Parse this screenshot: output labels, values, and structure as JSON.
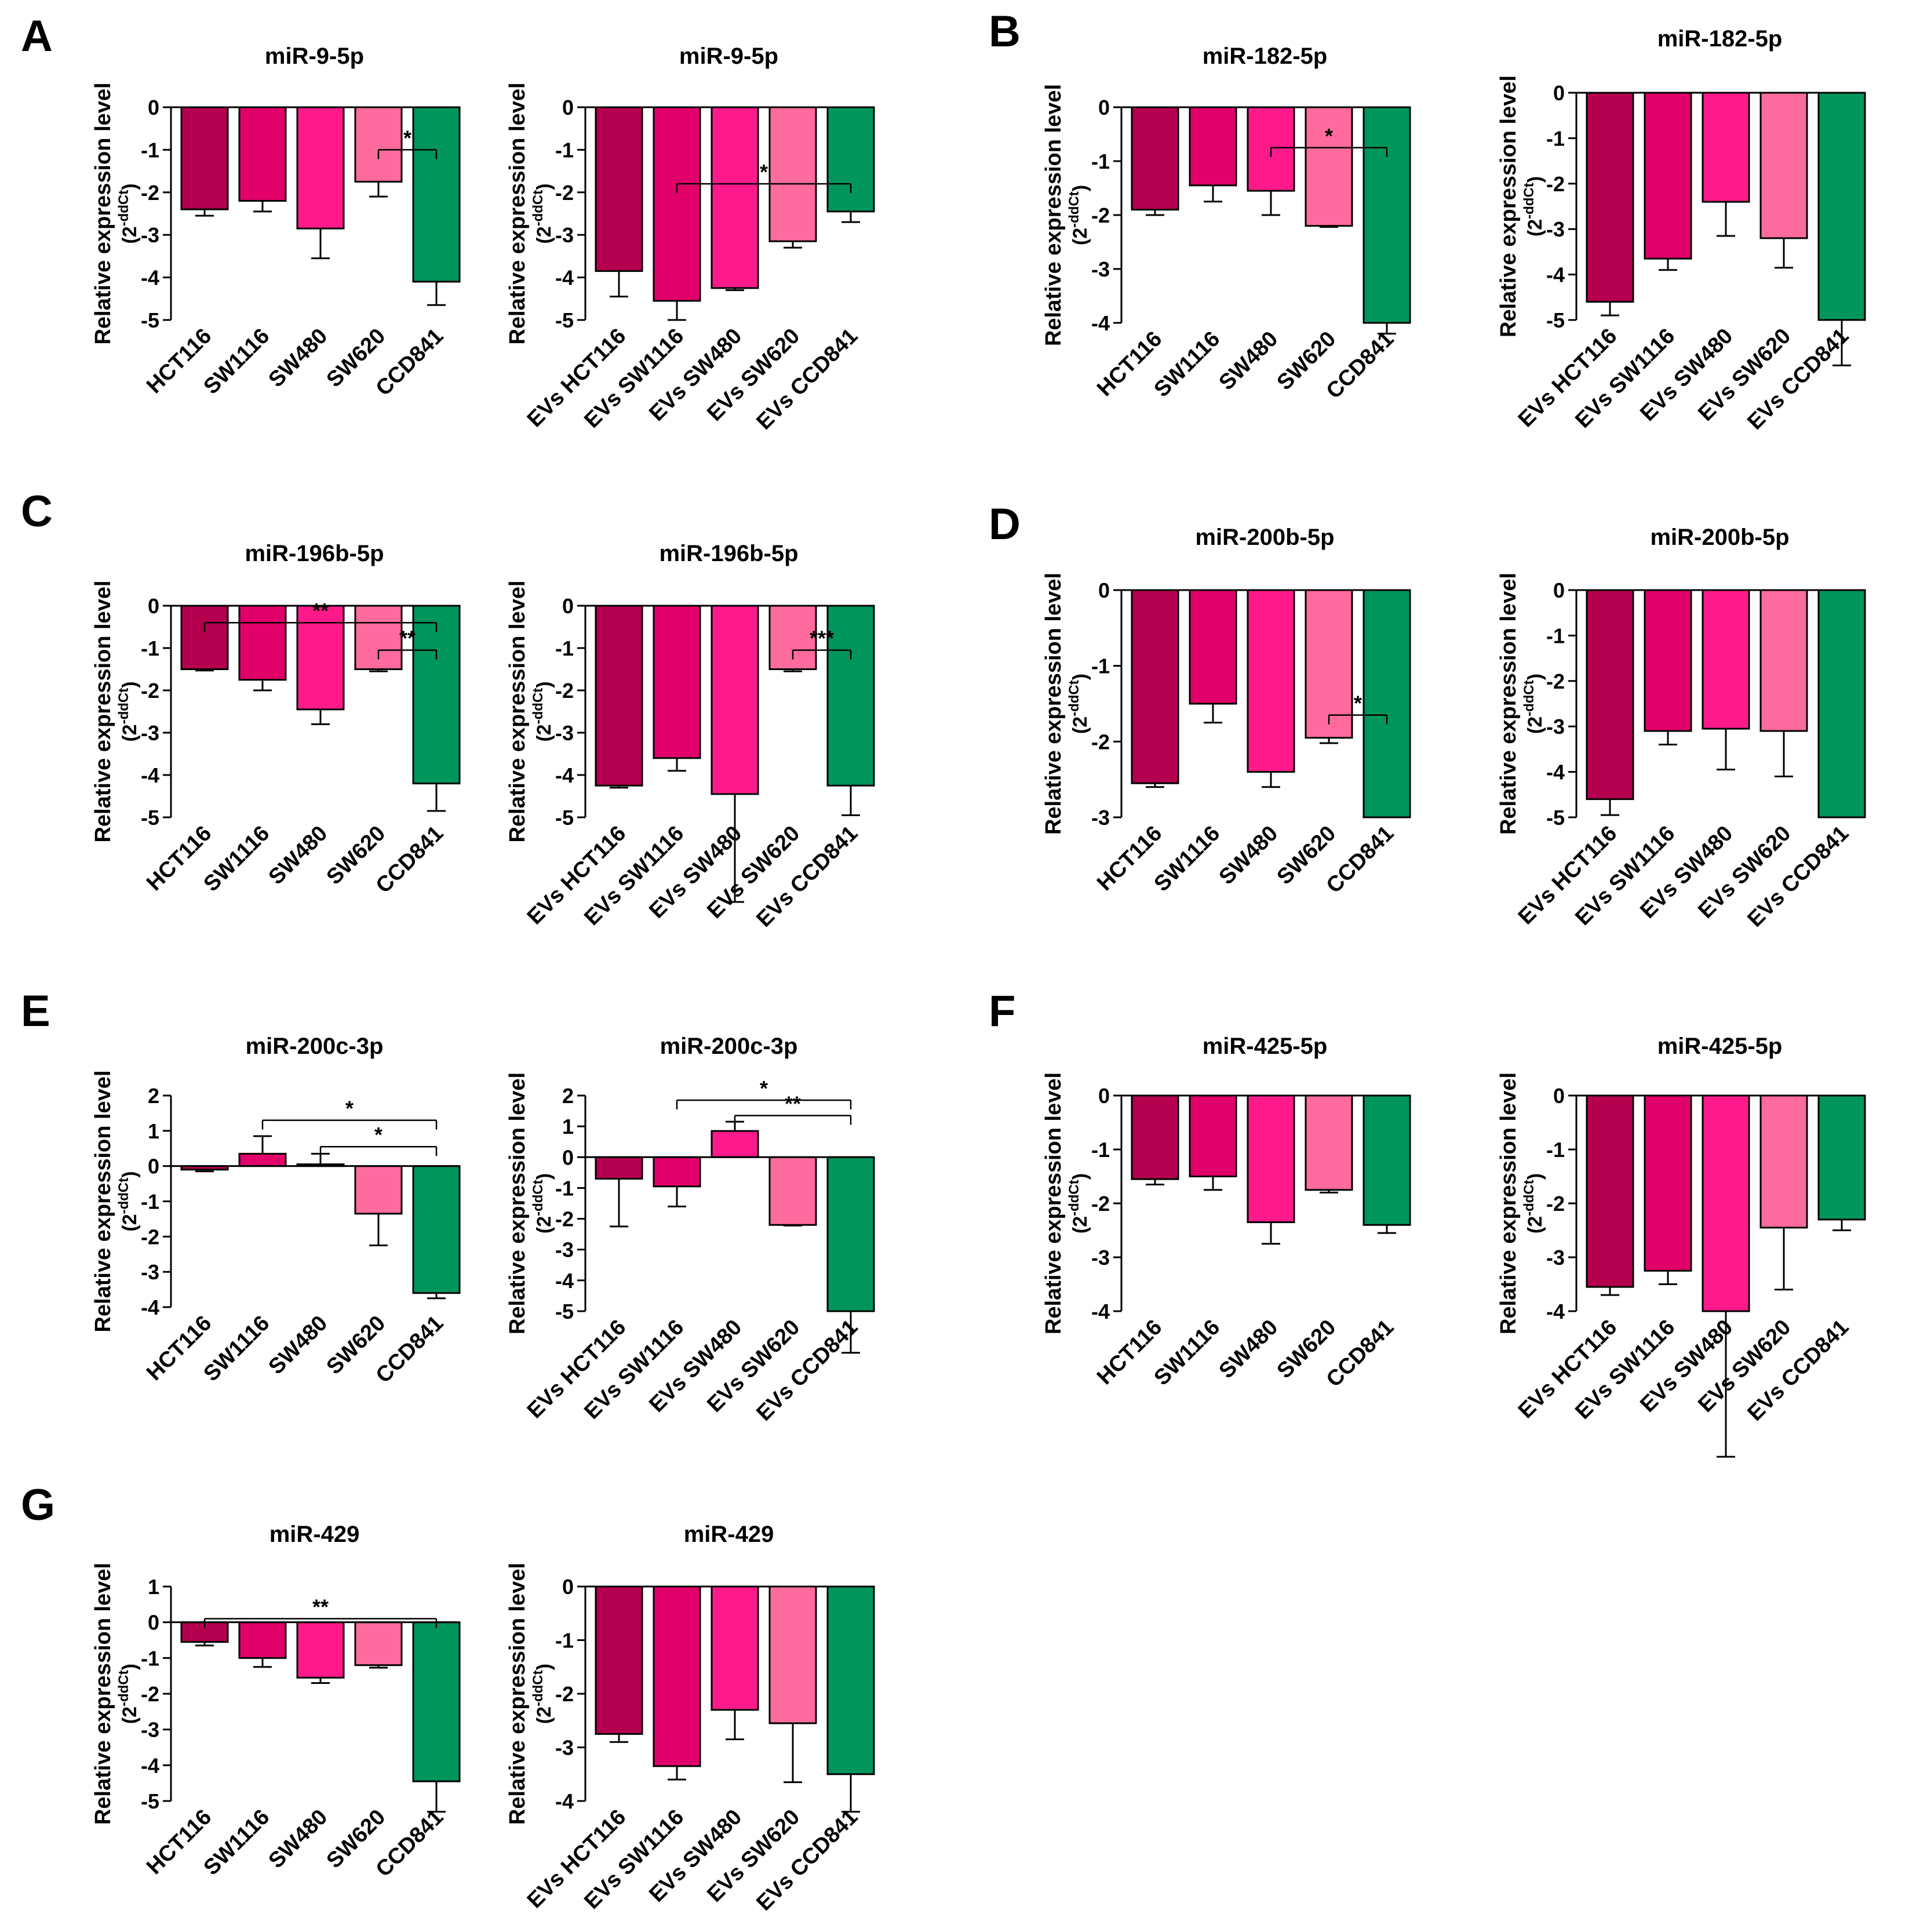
{
  "figure": {
    "panel_letters": [
      "A",
      "B",
      "C",
      "D",
      "E",
      "F",
      "G"
    ],
    "ylabel": "Relative expression level",
    "ylabel_unit": "(2",
    "ylabel_sup": "-ddCt",
    "ylabel_close": ")"
  },
  "colors": {
    "HCT116": "#b5004f",
    "SW1116": "#e2006a",
    "SW480": "#ff1a8c",
    "SW620": "#ff6b9e",
    "CCD841": "#00955a"
  },
  "chart_data": [
    {
      "panel": "A",
      "type": "bar",
      "title": "miR-9-5p",
      "categories": [
        "HCT116",
        "SW1116",
        "SW480",
        "SW620",
        "CCD841"
      ],
      "values": [
        -2.4,
        -2.2,
        -2.85,
        -1.75,
        -4.1
      ],
      "errors": [
        0.15,
        0.25,
        0.7,
        0.35,
        0.55
      ],
      "ylim": [
        -5,
        0
      ],
      "yticks": [
        0,
        -1,
        -2,
        -3,
        -4,
        -5
      ],
      "significance": [
        {
          "from": 3,
          "to": 4,
          "label": "*",
          "y": -1
        }
      ]
    },
    {
      "panel": "A",
      "type": "bar",
      "title": "miR-9-5p",
      "categories": [
        "EVs HCT116",
        "EVs SW1116",
        "EVs SW480",
        "EVs SW620",
        "EVs CCD841"
      ],
      "values": [
        -3.85,
        -4.55,
        -4.25,
        -3.15,
        -2.45
      ],
      "errors": [
        0.6,
        0.45,
        0.05,
        0.15,
        0.25
      ],
      "ylim": [
        -5,
        0
      ],
      "yticks": [
        0,
        -1,
        -2,
        -3,
        -4,
        -5
      ],
      "significance": [
        {
          "from": 1,
          "to": 4,
          "label": "*",
          "y": -1.8
        }
      ]
    },
    {
      "panel": "B",
      "type": "bar",
      "title": "miR-182-5p",
      "categories": [
        "HCT116",
        "SW1116",
        "SW480",
        "SW620",
        "CCD841"
      ],
      "values": [
        -1.9,
        -1.45,
        -1.55,
        -2.2,
        -4.0
      ],
      "errors": [
        0.1,
        0.3,
        0.45,
        0.02,
        0.2
      ],
      "ylim": [
        -4,
        0
      ],
      "yticks": [
        0,
        -1,
        -2,
        -3,
        -4
      ],
      "significance": [
        {
          "from": 2,
          "to": 4,
          "label": "*",
          "y": -0.75
        }
      ]
    },
    {
      "panel": "B",
      "type": "bar",
      "title": "miR-182-5p",
      "categories": [
        "EVs HCT116",
        "EVs SW1116",
        "EVs SW480",
        "EVs SW620",
        "EVs CCD841"
      ],
      "values": [
        -4.6,
        -3.65,
        -2.4,
        -3.2,
        -5.0
      ],
      "errors": [
        0.3,
        0.25,
        0.75,
        0.65,
        1.0
      ],
      "ylim": [
        -5,
        0
      ],
      "yticks": [
        0,
        -1,
        -2,
        -3,
        -4,
        -5
      ],
      "significance": []
    },
    {
      "panel": "C",
      "type": "bar",
      "title": "miR-196b-5p",
      "categories": [
        "HCT116",
        "SW1116",
        "SW480",
        "SW620",
        "CCD841"
      ],
      "values": [
        -1.5,
        -1.75,
        -2.45,
        -1.5,
        -4.2
      ],
      "errors": [
        0.03,
        0.25,
        0.35,
        0.05,
        0.65
      ],
      "ylim": [
        -5,
        0
      ],
      "yticks": [
        0,
        -1,
        -2,
        -3,
        -4,
        -5
      ],
      "significance": [
        {
          "from": 0,
          "to": 4,
          "label": "**",
          "y": -0.4
        },
        {
          "from": 3,
          "to": 4,
          "label": "**",
          "y": -1.05
        }
      ]
    },
    {
      "panel": "C",
      "type": "bar",
      "title": "miR-196b-5p",
      "categories": [
        "EVs HCT116",
        "EVs SW1116",
        "EVs SW480",
        "EVs SW620",
        "EVs CCD841"
      ],
      "values": [
        -4.25,
        -3.6,
        -4.45,
        -1.5,
        -4.25
      ],
      "errors": [
        0.05,
        0.3,
        2.55,
        0.05,
        0.7
      ],
      "ylim": [
        -5,
        0
      ],
      "yticks": [
        0,
        -1,
        -2,
        -3,
        -4,
        -5
      ],
      "significance": [
        {
          "from": 3,
          "to": 4,
          "label": "***",
          "y": -1.05
        }
      ]
    },
    {
      "panel": "D",
      "type": "bar",
      "title": "miR-200b-5p",
      "categories": [
        "HCT116",
        "SW1116",
        "SW480",
        "SW620",
        "CCD841"
      ],
      "values": [
        -2.55,
        -1.5,
        -2.4,
        -1.95,
        -3.0
      ],
      "errors": [
        0.05,
        0.25,
        0.2,
        0.07,
        0.0
      ],
      "ylim": [
        -3,
        0
      ],
      "yticks": [
        0,
        -1,
        -2,
        -3
      ],
      "significance": [
        {
          "from": 3,
          "to": 4,
          "label": "*",
          "y": -1.65
        }
      ]
    },
    {
      "panel": "D",
      "type": "bar",
      "title": "miR-200b-5p",
      "categories": [
        "EVs HCT116",
        "EVs SW1116",
        "EVs SW480",
        "EVs SW620",
        "EVs CCD841"
      ],
      "values": [
        -4.6,
        -3.1,
        -3.05,
        -3.1,
        -5.0
      ],
      "errors": [
        0.35,
        0.3,
        0.9,
        1.0,
        0.0
      ],
      "ylim": [
        -5,
        0
      ],
      "yticks": [
        0,
        -1,
        -2,
        -3,
        -4,
        -5
      ],
      "significance": []
    },
    {
      "panel": "E",
      "type": "bar",
      "title": "miR-200c-3p",
      "categories": [
        "HCT116",
        "SW1116",
        "SW480",
        "SW620",
        "CCD841"
      ],
      "values": [
        -0.1,
        0.35,
        0.05,
        -1.35,
        -3.6
      ],
      "errors": [
        0.05,
        0.5,
        0.3,
        0.9,
        0.15
      ],
      "ylim": [
        -4,
        2
      ],
      "yticks": [
        2,
        1,
        0,
        -1,
        -2,
        -3,
        -4
      ],
      "significance": [
        {
          "from": 1,
          "to": 4,
          "label": "*",
          "y": 1.3
        },
        {
          "from": 2,
          "to": 4,
          "label": "*",
          "y": 0.55
        }
      ]
    },
    {
      "panel": "E",
      "type": "bar",
      "title": "miR-200c-3p",
      "categories": [
        "EVs HCT116",
        "EVs SW1116",
        "EVs SW480",
        "EVs SW620",
        "EVs CCD841"
      ],
      "values": [
        -0.7,
        -0.95,
        0.85,
        -2.2,
        -5.0
      ],
      "errors": [
        1.55,
        0.65,
        0.3,
        0.02,
        1.35
      ],
      "ylim": [
        -5,
        2
      ],
      "yticks": [
        2,
        1,
        0,
        -1,
        -2,
        -3,
        -4,
        -5
      ],
      "significance": [
        {
          "from": 1,
          "to": 4,
          "label": "*",
          "y": 1.85
        },
        {
          "from": 2,
          "to": 4,
          "label": "**",
          "y": 1.35
        }
      ]
    },
    {
      "panel": "F",
      "type": "bar",
      "title": "miR-425-5p",
      "categories": [
        "HCT116",
        "SW1116",
        "SW480",
        "SW620",
        "CCD841"
      ],
      "values": [
        -1.55,
        -1.5,
        -2.35,
        -1.75,
        -2.4
      ],
      "errors": [
        0.1,
        0.25,
        0.4,
        0.05,
        0.15
      ],
      "ylim": [
        -4,
        0
      ],
      "yticks": [
        0,
        -1,
        -2,
        -3,
        -4
      ],
      "significance": []
    },
    {
      "panel": "F",
      "type": "bar",
      "title": "miR-425-5p",
      "categories": [
        "EVs HCT116",
        "EVs SW1116",
        "EVs SW480",
        "EVs SW620",
        "EVs CCD841"
      ],
      "values": [
        -3.55,
        -3.25,
        -4.0,
        -2.45,
        -2.3
      ],
      "errors": [
        0.15,
        0.25,
        2.7,
        1.15,
        0.2
      ],
      "ylim": [
        -4,
        0
      ],
      "yticks": [
        0,
        -1,
        -2,
        -3,
        -4
      ],
      "significance": []
    },
    {
      "panel": "G",
      "type": "bar",
      "title": "miR-429",
      "categories": [
        "HCT116",
        "SW1116",
        "SW480",
        "SW620",
        "CCD841"
      ],
      "values": [
        -0.55,
        -1.0,
        -1.55,
        -1.2,
        -4.45
      ],
      "errors": [
        0.1,
        0.25,
        0.15,
        0.07,
        0.85
      ],
      "ylim": [
        -5,
        1
      ],
      "yticks": [
        1,
        0,
        -1,
        -2,
        -3,
        -4,
        -5
      ],
      "significance": [
        {
          "from": 0,
          "to": 4,
          "label": "**",
          "y": 0.1
        }
      ]
    },
    {
      "panel": "G",
      "type": "bar",
      "title": "miR-429",
      "categories": [
        "EVs HCT116",
        "EVs SW1116",
        "EVs SW480",
        "EVs SW620",
        "EVs CCD841"
      ],
      "values": [
        -2.75,
        -3.35,
        -2.3,
        -2.55,
        -3.5
      ],
      "errors": [
        0.15,
        0.25,
        0.55,
        1.1,
        0.7
      ],
      "ylim": [
        -4,
        0
      ],
      "yticks": [
        0,
        -1,
        -2,
        -3,
        -4
      ],
      "significance": []
    }
  ]
}
